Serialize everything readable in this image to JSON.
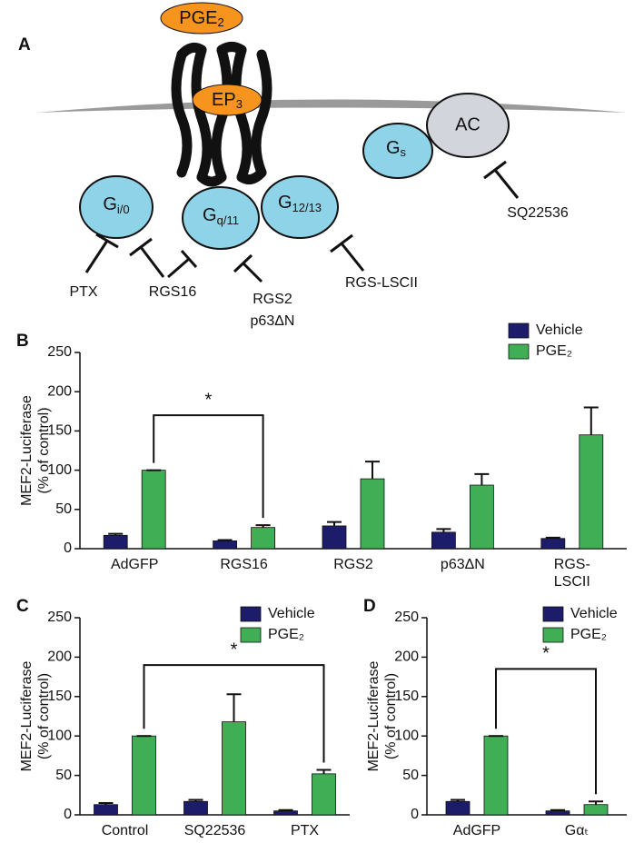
{
  "diagram": {
    "panel": "A",
    "ligand": {
      "main": "PGE",
      "sub": "2"
    },
    "receptor": {
      "main": "EP",
      "sub": "3"
    },
    "proteins": [
      {
        "main": "G",
        "sub": "i/0"
      },
      {
        "main": "G",
        "sub": "q/11"
      },
      {
        "main": "G",
        "sub": "12/13"
      },
      {
        "main": "G",
        "sub": "s"
      },
      {
        "main": "AC"
      }
    ],
    "inhibitors": [
      "PTX",
      "RGS16",
      "RGS2",
      "p63ΔN",
      "RGS-LSCII",
      "SQ22536"
    ]
  },
  "chart_data": [
    {
      "type": "bar",
      "panel": "B",
      "ylabel": [
        "MEF2-Luciferase",
        "(% of control)"
      ],
      "categories": [
        "AdGFP",
        "RGS16",
        "RGS2",
        "p63ΔN",
        "RGS-\nLSCII"
      ],
      "series": [
        {
          "name": "Vehicle",
          "color": "#1c1c6b",
          "values": [
            17,
            10,
            29,
            21,
            13
          ],
          "errors": [
            2,
            1,
            5,
            4,
            1
          ]
        },
        {
          "name": "PGE₂",
          "color": "#3fae55",
          "values": [
            100,
            27,
            89,
            81,
            145
          ],
          "errors": [
            0,
            3,
            22,
            14,
            35
          ]
        }
      ],
      "ylim": [
        0,
        250
      ],
      "yticks": [
        0,
        50,
        100,
        150,
        200,
        250
      ],
      "annotations": [
        {
          "text": "*",
          "y": 170,
          "pair": [
            0,
            1
          ]
        }
      ]
    },
    {
      "type": "bar",
      "panel": "C",
      "ylabel": [
        "MEF2-Luciferase",
        "(% of control)"
      ],
      "categories": [
        "Control",
        "SQ22536",
        "PTX"
      ],
      "series": [
        {
          "name": "Vehicle",
          "color": "#1c1c6b",
          "values": [
            13,
            17,
            5
          ],
          "errors": [
            2,
            2,
            1
          ]
        },
        {
          "name": "PGE₂",
          "color": "#3fae55",
          "values": [
            100,
            118,
            52
          ],
          "errors": [
            0,
            35,
            5
          ]
        }
      ],
      "ylim": [
        0,
        250
      ],
      "yticks": [
        0,
        50,
        100,
        150,
        200,
        250
      ],
      "annotations": [
        {
          "text": "*",
          "y": 190,
          "pair": [
            0,
            2
          ]
        }
      ]
    },
    {
      "type": "bar",
      "panel": "D",
      "ylabel": [
        "MEF2-Luciferase",
        "(% of control)"
      ],
      "categories": [
        "AdGFP",
        "Gαₜ"
      ],
      "series": [
        {
          "name": "Vehicle",
          "color": "#1c1c6b",
          "values": [
            17,
            5
          ],
          "errors": [
            2,
            1
          ]
        },
        {
          "name": "PGE₂",
          "color": "#3fae55",
          "values": [
            100,
            13
          ],
          "errors": [
            0,
            4
          ]
        }
      ],
      "ylim": [
        0,
        250
      ],
      "yticks": [
        0,
        50,
        100,
        150,
        200,
        250
      ],
      "annotations": [
        {
          "text": "*",
          "y": 185,
          "pair": [
            0,
            1
          ]
        }
      ]
    }
  ]
}
